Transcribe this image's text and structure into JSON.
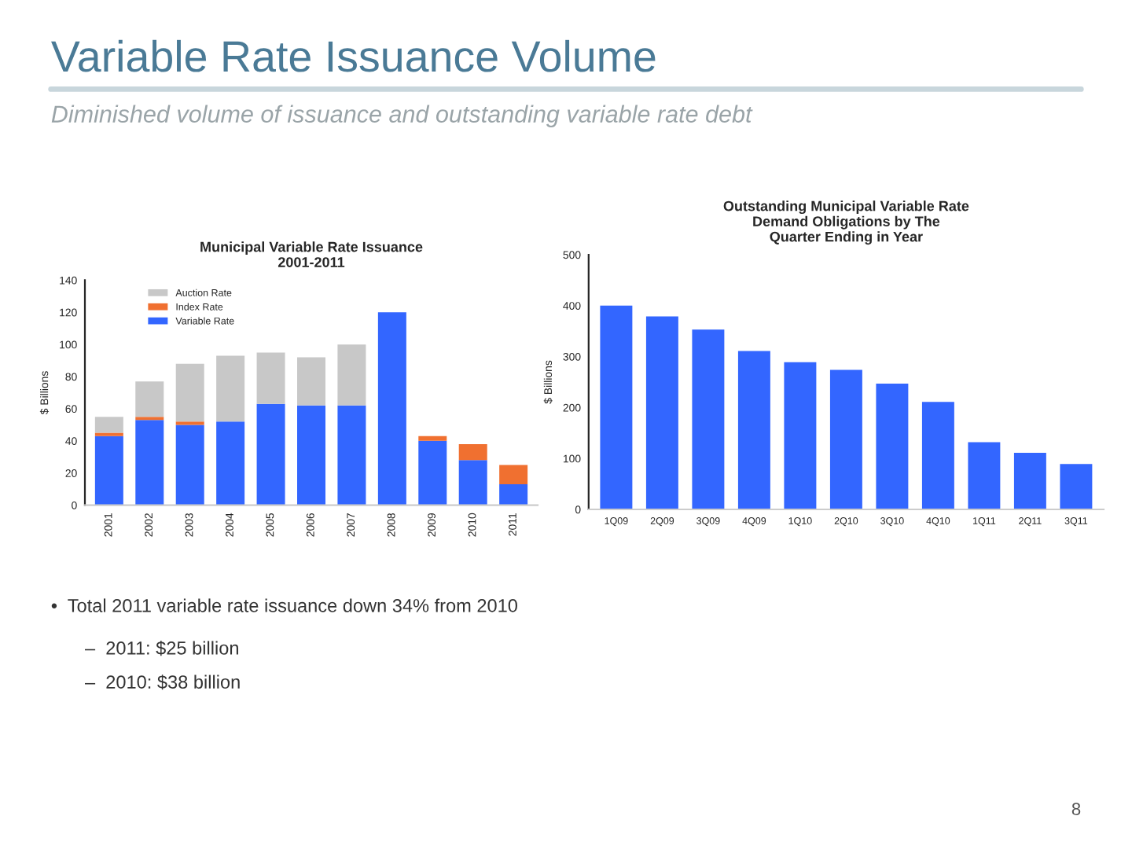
{
  "chart_data": [
    {
      "type": "other",
      "title": "Variable Rate Issuance Volume",
      "subtitle": "Diminished volume of issuance and outstanding variable rate debt",
      "annotations": [
        "•  Total 2011 variable rate issuance down 34% from 2010",
        "–  2011: $25 billion",
        "–  2010: $38 billion",
        "8"
      ]
    },
    {
      "type": "bar",
      "title": "Municipal Variable Rate Issuance\n2001-2011",
      "ylabel": "$ Billions",
      "categories": [
        "2001",
        "2002",
        "2003",
        "2004",
        "2005",
        "2006",
        "2007",
        "2008",
        "2009",
        "2010",
        "2011"
      ],
      "stacked": true,
      "legend": "top left",
      "grid": false,
      "series": [
        {
          "name": "Variable Rate",
          "color": "#3366ff",
          "values": [
            43,
            53,
            50,
            52,
            63,
            62,
            62,
            120,
            40,
            28,
            13
          ]
        },
        {
          "name": "Index Rate",
          "color": "#f07030",
          "values": [
            2,
            2,
            2,
            0,
            0,
            0,
            0,
            0,
            3,
            10,
            12
          ]
        },
        {
          "name": "Auction Rate",
          "color": "#c8c8c8",
          "values": [
            10,
            22,
            36,
            41,
            32,
            30,
            38,
            0,
            0,
            0,
            0
          ]
        }
      ],
      "ylim": [
        0,
        140
      ],
      "yticks": [
        0,
        20,
        40,
        60,
        80,
        100,
        120,
        140
      ]
    },
    {
      "type": "bar",
      "title": "Outstanding Municipal Variable Rate\nDemand Obligations by The\nQuarter Ending in Year",
      "ylabel": "$ Billions",
      "categories": [
        "1Q09",
        "2Q09",
        "3Q09",
        "4Q09",
        "1Q10",
        "2Q10",
        "3Q10",
        "4Q10",
        "1Q11",
        "2Q11",
        "3Q11"
      ],
      "grid": false,
      "series": [
        {
          "color": "#3366ff",
          "values": [
            400,
            379,
            353,
            311,
            289,
            274,
            247,
            211,
            132,
            111,
            89
          ]
        }
      ],
      "ylim": [
        0,
        500
      ],
      "yticks": [
        0,
        100,
        200,
        300,
        400,
        500
      ]
    }
  ]
}
